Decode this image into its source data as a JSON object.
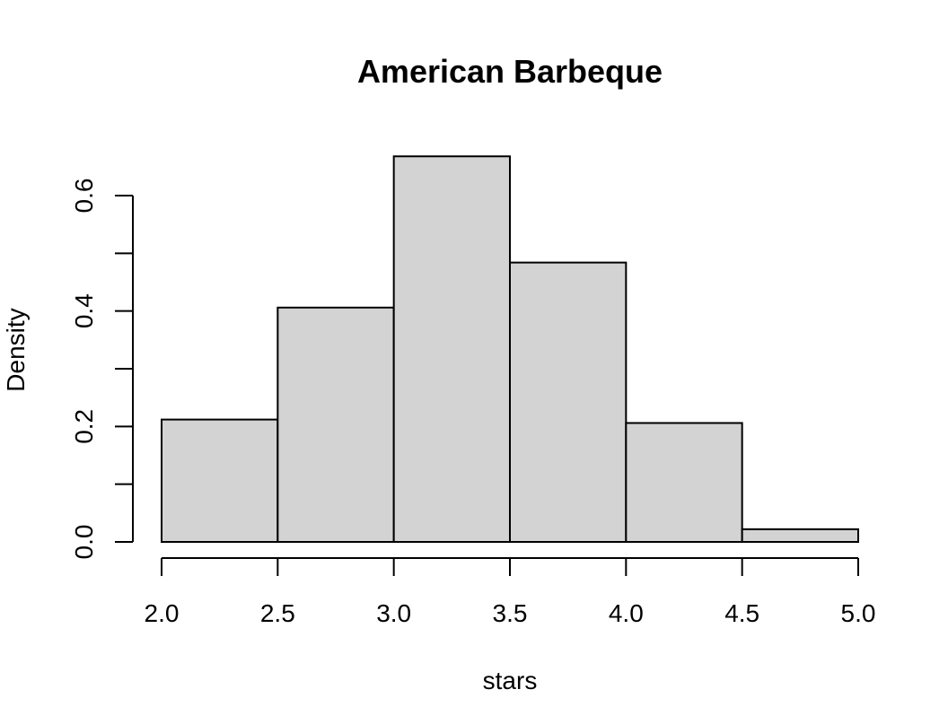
{
  "chart_data": {
    "type": "bar",
    "title": "American Barbeque",
    "xlabel": "stars",
    "ylabel": "Density",
    "bins": [
      {
        "start": 2.0,
        "end": 2.5,
        "density": 0.212
      },
      {
        "start": 2.5,
        "end": 3.0,
        "density": 0.406
      },
      {
        "start": 3.0,
        "end": 3.5,
        "density": 0.668
      },
      {
        "start": 3.5,
        "end": 4.0,
        "density": 0.484
      },
      {
        "start": 4.0,
        "end": 4.5,
        "density": 0.206
      },
      {
        "start": 4.5,
        "end": 5.0,
        "density": 0.022
      }
    ],
    "x_ticks": [
      "2.0",
      "2.5",
      "3.0",
      "3.5",
      "4.0",
      "4.5",
      "5.0"
    ],
    "y_ticks": [
      "0.0",
      "0.2",
      "0.4",
      "0.6"
    ],
    "xlim": [
      2.0,
      5.0
    ],
    "ylim": [
      0.0,
      0.6
    ],
    "grid": false,
    "bar_color": "#d3d3d3",
    "edge_color": "#000000"
  }
}
